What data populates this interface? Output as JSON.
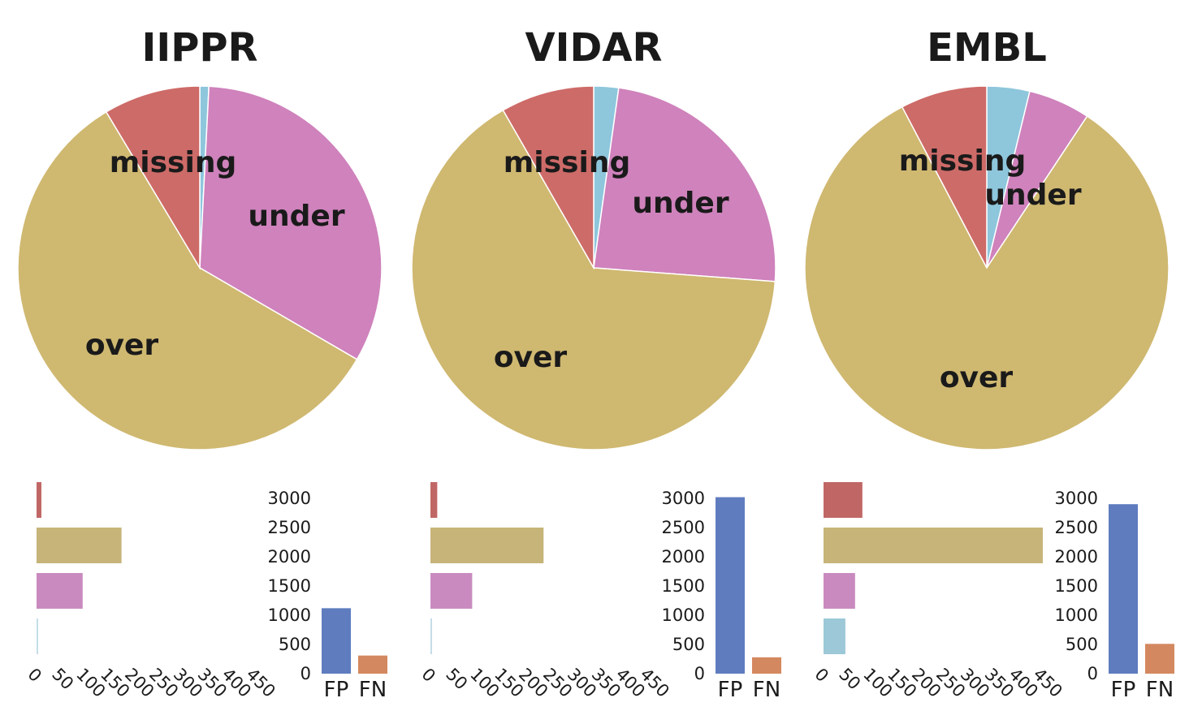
{
  "chart_data": [
    {
      "type": "pie",
      "title": "IIPPR",
      "start_angle_deg": 90,
      "direction": "clockwise",
      "slices": [
        {
          "label": "",
          "value": 0.8,
          "color": "#8ec6dc"
        },
        {
          "label": "under",
          "value": 32.6,
          "color": "#cf82bc"
        },
        {
          "label": "over",
          "value": 58.0,
          "color": "#cfb870"
        },
        {
          "label": "missing",
          "value": 8.6,
          "color": "#cd6b68"
        }
      ]
    },
    {
      "type": "pie",
      "title": "VIDAR",
      "start_angle_deg": 90,
      "direction": "clockwise",
      "slices": [
        {
          "label": "",
          "value": 2.2,
          "color": "#8ec6dc"
        },
        {
          "label": "under",
          "value": 24.0,
          "color": "#cf82bc"
        },
        {
          "label": "over",
          "value": 65.5,
          "color": "#cfb870"
        },
        {
          "label": "missing",
          "value": 8.3,
          "color": "#cd6b68"
        }
      ]
    },
    {
      "type": "pie",
      "title": "EMBL",
      "start_angle_deg": 90,
      "direction": "clockwise",
      "slices": [
        {
          "label": "",
          "value": 3.8,
          "color": "#8ec6dc"
        },
        {
          "label": "under",
          "value": 5.5,
          "color": "#cf82bc"
        },
        {
          "label": "over",
          "value": 83.0,
          "color": "#cfb870"
        },
        {
          "label": "missing",
          "value": 7.7,
          "color": "#cd6b68"
        }
      ]
    },
    {
      "type": "bar",
      "orientation": "horizontal",
      "panel": "IIPPR",
      "categories": [
        "missing",
        "over",
        "under",
        ""
      ],
      "values": [
        10,
        175,
        95,
        2
      ],
      "colors": [
        "#c06765",
        "#c6b479",
        "#c98bbf",
        "#9cc8d8"
      ],
      "xlim": [
        0,
        450
      ],
      "xticks": [
        "0",
        "50",
        "100",
        "150",
        "200",
        "250",
        "300",
        "350",
        "400",
        "450"
      ]
    },
    {
      "type": "bar",
      "panel": "IIPPR",
      "categories": [
        "FP",
        "FN"
      ],
      "values": [
        1120,
        310
      ],
      "colors": [
        "#5f7cbf",
        "#d4885f"
      ],
      "ylim": [
        0,
        3000
      ],
      "yticks": [
        "0",
        "500",
        "1000",
        "1500",
        "2000",
        "2500",
        "3000"
      ]
    },
    {
      "type": "bar",
      "orientation": "horizontal",
      "panel": "VIDAR",
      "categories": [
        "missing",
        "over",
        "under",
        ""
      ],
      "values": [
        14,
        233,
        86,
        6
      ],
      "colors": [
        "#c06765",
        "#c6b479",
        "#c98bbf",
        "#9cc8d8"
      ],
      "xlim": [
        0,
        450
      ],
      "xticks": [
        "0",
        "50",
        "100",
        "150",
        "200",
        "250",
        "300",
        "350",
        "400",
        "450"
      ]
    },
    {
      "type": "bar",
      "panel": "VIDAR",
      "categories": [
        "FP",
        "FN"
      ],
      "values": [
        3020,
        280
      ],
      "colors": [
        "#5f7cbf",
        "#d4885f"
      ],
      "ylim": [
        0,
        3000
      ],
      "yticks": [
        "0",
        "500",
        "1000",
        "1500",
        "2000",
        "2500",
        "3000"
      ]
    },
    {
      "type": "bar",
      "orientation": "horizontal",
      "panel": "EMBL",
      "categories": [
        "missing",
        "over",
        "under",
        ""
      ],
      "values": [
        80,
        470,
        65,
        45
      ],
      "colors": [
        "#c06765",
        "#c6b479",
        "#c98bbf",
        "#9cc8d8"
      ],
      "xlim": [
        0,
        450
      ],
      "xticks": [
        "0",
        "50",
        "100",
        "150",
        "200",
        "250",
        "300",
        "350",
        "400",
        "450"
      ]
    },
    {
      "type": "bar",
      "panel": "EMBL",
      "categories": [
        "FP",
        "FN"
      ],
      "values": [
        2900,
        510
      ],
      "colors": [
        "#5f7cbf",
        "#d4885f"
      ],
      "ylim": [
        0,
        3000
      ],
      "yticks": [
        "0",
        "500",
        "1000",
        "1500",
        "2000",
        "2500",
        "3000"
      ]
    }
  ]
}
